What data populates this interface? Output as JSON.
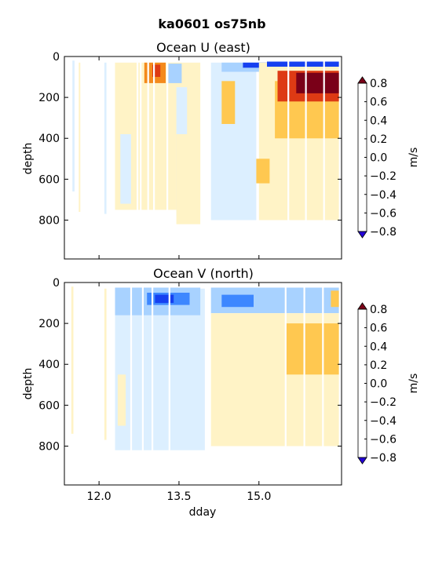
{
  "figure": {
    "suptitle": "ka0601 os75nb"
  },
  "colorbar": {
    "label": "m/s",
    "ticks": [
      "0.8",
      "0.6",
      "0.4",
      "0.2",
      "0.0",
      "−0.2",
      "−0.4",
      "−0.6",
      "−0.8"
    ],
    "levels": [
      -0.8,
      -0.6,
      -0.4,
      -0.2,
      0.0,
      0.2,
      0.4,
      0.6,
      0.8
    ],
    "colors": [
      "#2400d8",
      "#1640f0",
      "#3d87ff",
      "#a8d2ff",
      "#dcefff",
      "#fff3c6",
      "#ffc850",
      "#f48a1c",
      "#dd3a14",
      "#a50021",
      "#7a0018"
    ]
  },
  "chart_data": [
    {
      "type": "heatmap",
      "title": "Ocean U (east)",
      "xlabel": "",
      "ylabel": "depth",
      "colorbar_label": "m/s",
      "xlim": [
        11.35,
        16.55
      ],
      "ylim": [
        990,
        0
      ],
      "xticks": [
        12.0,
        13.5,
        15.0
      ],
      "xticklabels": [
        "",
        "",
        ""
      ],
      "yticks": [
        0,
        200,
        400,
        600,
        800
      ],
      "yticklabels": [
        "0",
        "200",
        "400",
        "600",
        "800"
      ],
      "vrange": [
        -0.8,
        0.8
      ],
      "features": [
        {
          "x": [
            11.5,
            11.54
          ],
          "depth": [
            20,
            660
          ],
          "value": -0.1
        },
        {
          "x": [
            11.62,
            11.65
          ],
          "depth": [
            30,
            760
          ],
          "value": 0.08
        },
        {
          "x": [
            12.1,
            12.14
          ],
          "depth": [
            30,
            770
          ],
          "value": -0.1
        },
        {
          "x": [
            12.3,
            13.9
          ],
          "depth": [
            30,
            750
          ],
          "value": 0.1
        },
        {
          "x": [
            12.4,
            12.6
          ],
          "depth": [
            380,
            720
          ],
          "value": -0.1
        },
        {
          "x": [
            12.85,
            13.25
          ],
          "depth": [
            30,
            130
          ],
          "value": 0.45
        },
        {
          "x": [
            13.0,
            13.15
          ],
          "depth": [
            40,
            100
          ],
          "value": 0.7
        },
        {
          "x": [
            13.3,
            13.55
          ],
          "depth": [
            35,
            130
          ],
          "value": -0.3
        },
        {
          "x": [
            13.45,
            13.65
          ],
          "depth": [
            150,
            780
          ],
          "value": -0.12
        },
        {
          "x": [
            13.45,
            13.9
          ],
          "depth": [
            380,
            820
          ],
          "value": 0.08
        },
        {
          "x": [
            14.1,
            14.95
          ],
          "depth": [
            30,
            800
          ],
          "value": -0.08
        },
        {
          "x": [
            14.3,
            14.55
          ],
          "depth": [
            120,
            330
          ],
          "value": 0.3
        },
        {
          "x": [
            14.3,
            15.3
          ],
          "depth": [
            30,
            75
          ],
          "value": -0.35
        },
        {
          "x": [
            14.7,
            15.15
          ],
          "depth": [
            30,
            55
          ],
          "value": -0.75
        },
        {
          "x": [
            15.0,
            16.5
          ],
          "depth": [
            30,
            800
          ],
          "value": 0.12
        },
        {
          "x": [
            15.15,
            16.5
          ],
          "depth": [
            25,
            50
          ],
          "value": -0.7
        },
        {
          "x": [
            15.3,
            16.5
          ],
          "depth": [
            120,
            400
          ],
          "value": 0.3
        },
        {
          "x": [
            15.35,
            16.5
          ],
          "depth": [
            70,
            220
          ],
          "value": 0.6
        },
        {
          "x": [
            15.7,
            16.5
          ],
          "depth": [
            80,
            180
          ],
          "value": 0.8
        },
        {
          "x": [
            14.95,
            15.2
          ],
          "depth": [
            500,
            620
          ],
          "value": 0.3
        }
      ]
    },
    {
      "type": "heatmap",
      "title": "Ocean V (north)",
      "xlabel": "dday",
      "ylabel": "depth",
      "colorbar_label": "m/s",
      "xlim": [
        11.35,
        16.55
      ],
      "ylim": [
        990,
        0
      ],
      "xticks": [
        12.0,
        13.5,
        15.0
      ],
      "xticklabels": [
        "12.0",
        "13.5",
        "15.0"
      ],
      "yticks": [
        0,
        200,
        400,
        600,
        800
      ],
      "yticklabels": [
        "0",
        "200",
        "400",
        "600",
        "800"
      ],
      "vrange": [
        -0.8,
        0.8
      ],
      "features": [
        {
          "x": [
            11.48,
            11.52
          ],
          "depth": [
            20,
            740
          ],
          "value": 0.1
        },
        {
          "x": [
            12.1,
            12.14
          ],
          "depth": [
            30,
            770
          ],
          "value": 0.1
        },
        {
          "x": [
            12.3,
            14.0
          ],
          "depth": [
            30,
            820
          ],
          "value": -0.08
        },
        {
          "x": [
            12.3,
            13.9
          ],
          "depth": [
            25,
            160
          ],
          "value": -0.3
        },
        {
          "x": [
            12.9,
            13.7
          ],
          "depth": [
            50,
            110
          ],
          "value": -0.5
        },
        {
          "x": [
            13.05,
            13.4
          ],
          "depth": [
            60,
            100
          ],
          "value": -0.75
        },
        {
          "x": [
            12.35,
            12.5
          ],
          "depth": [
            450,
            700
          ],
          "value": 0.1
        },
        {
          "x": [
            14.1,
            16.5
          ],
          "depth": [
            25,
            150
          ],
          "value": -0.3
        },
        {
          "x": [
            14.3,
            14.9
          ],
          "depth": [
            60,
            120
          ],
          "value": -0.5
        },
        {
          "x": [
            14.1,
            16.5
          ],
          "depth": [
            150,
            800
          ],
          "value": 0.1
        },
        {
          "x": [
            15.5,
            16.5
          ],
          "depth": [
            200,
            450
          ],
          "value": 0.25
        },
        {
          "x": [
            15.6,
            15.95
          ],
          "depth": [
            230,
            330
          ],
          "value": 0.35
        },
        {
          "x": [
            16.35,
            16.5
          ],
          "depth": [
            40,
            120
          ],
          "value": 0.3
        }
      ]
    }
  ]
}
